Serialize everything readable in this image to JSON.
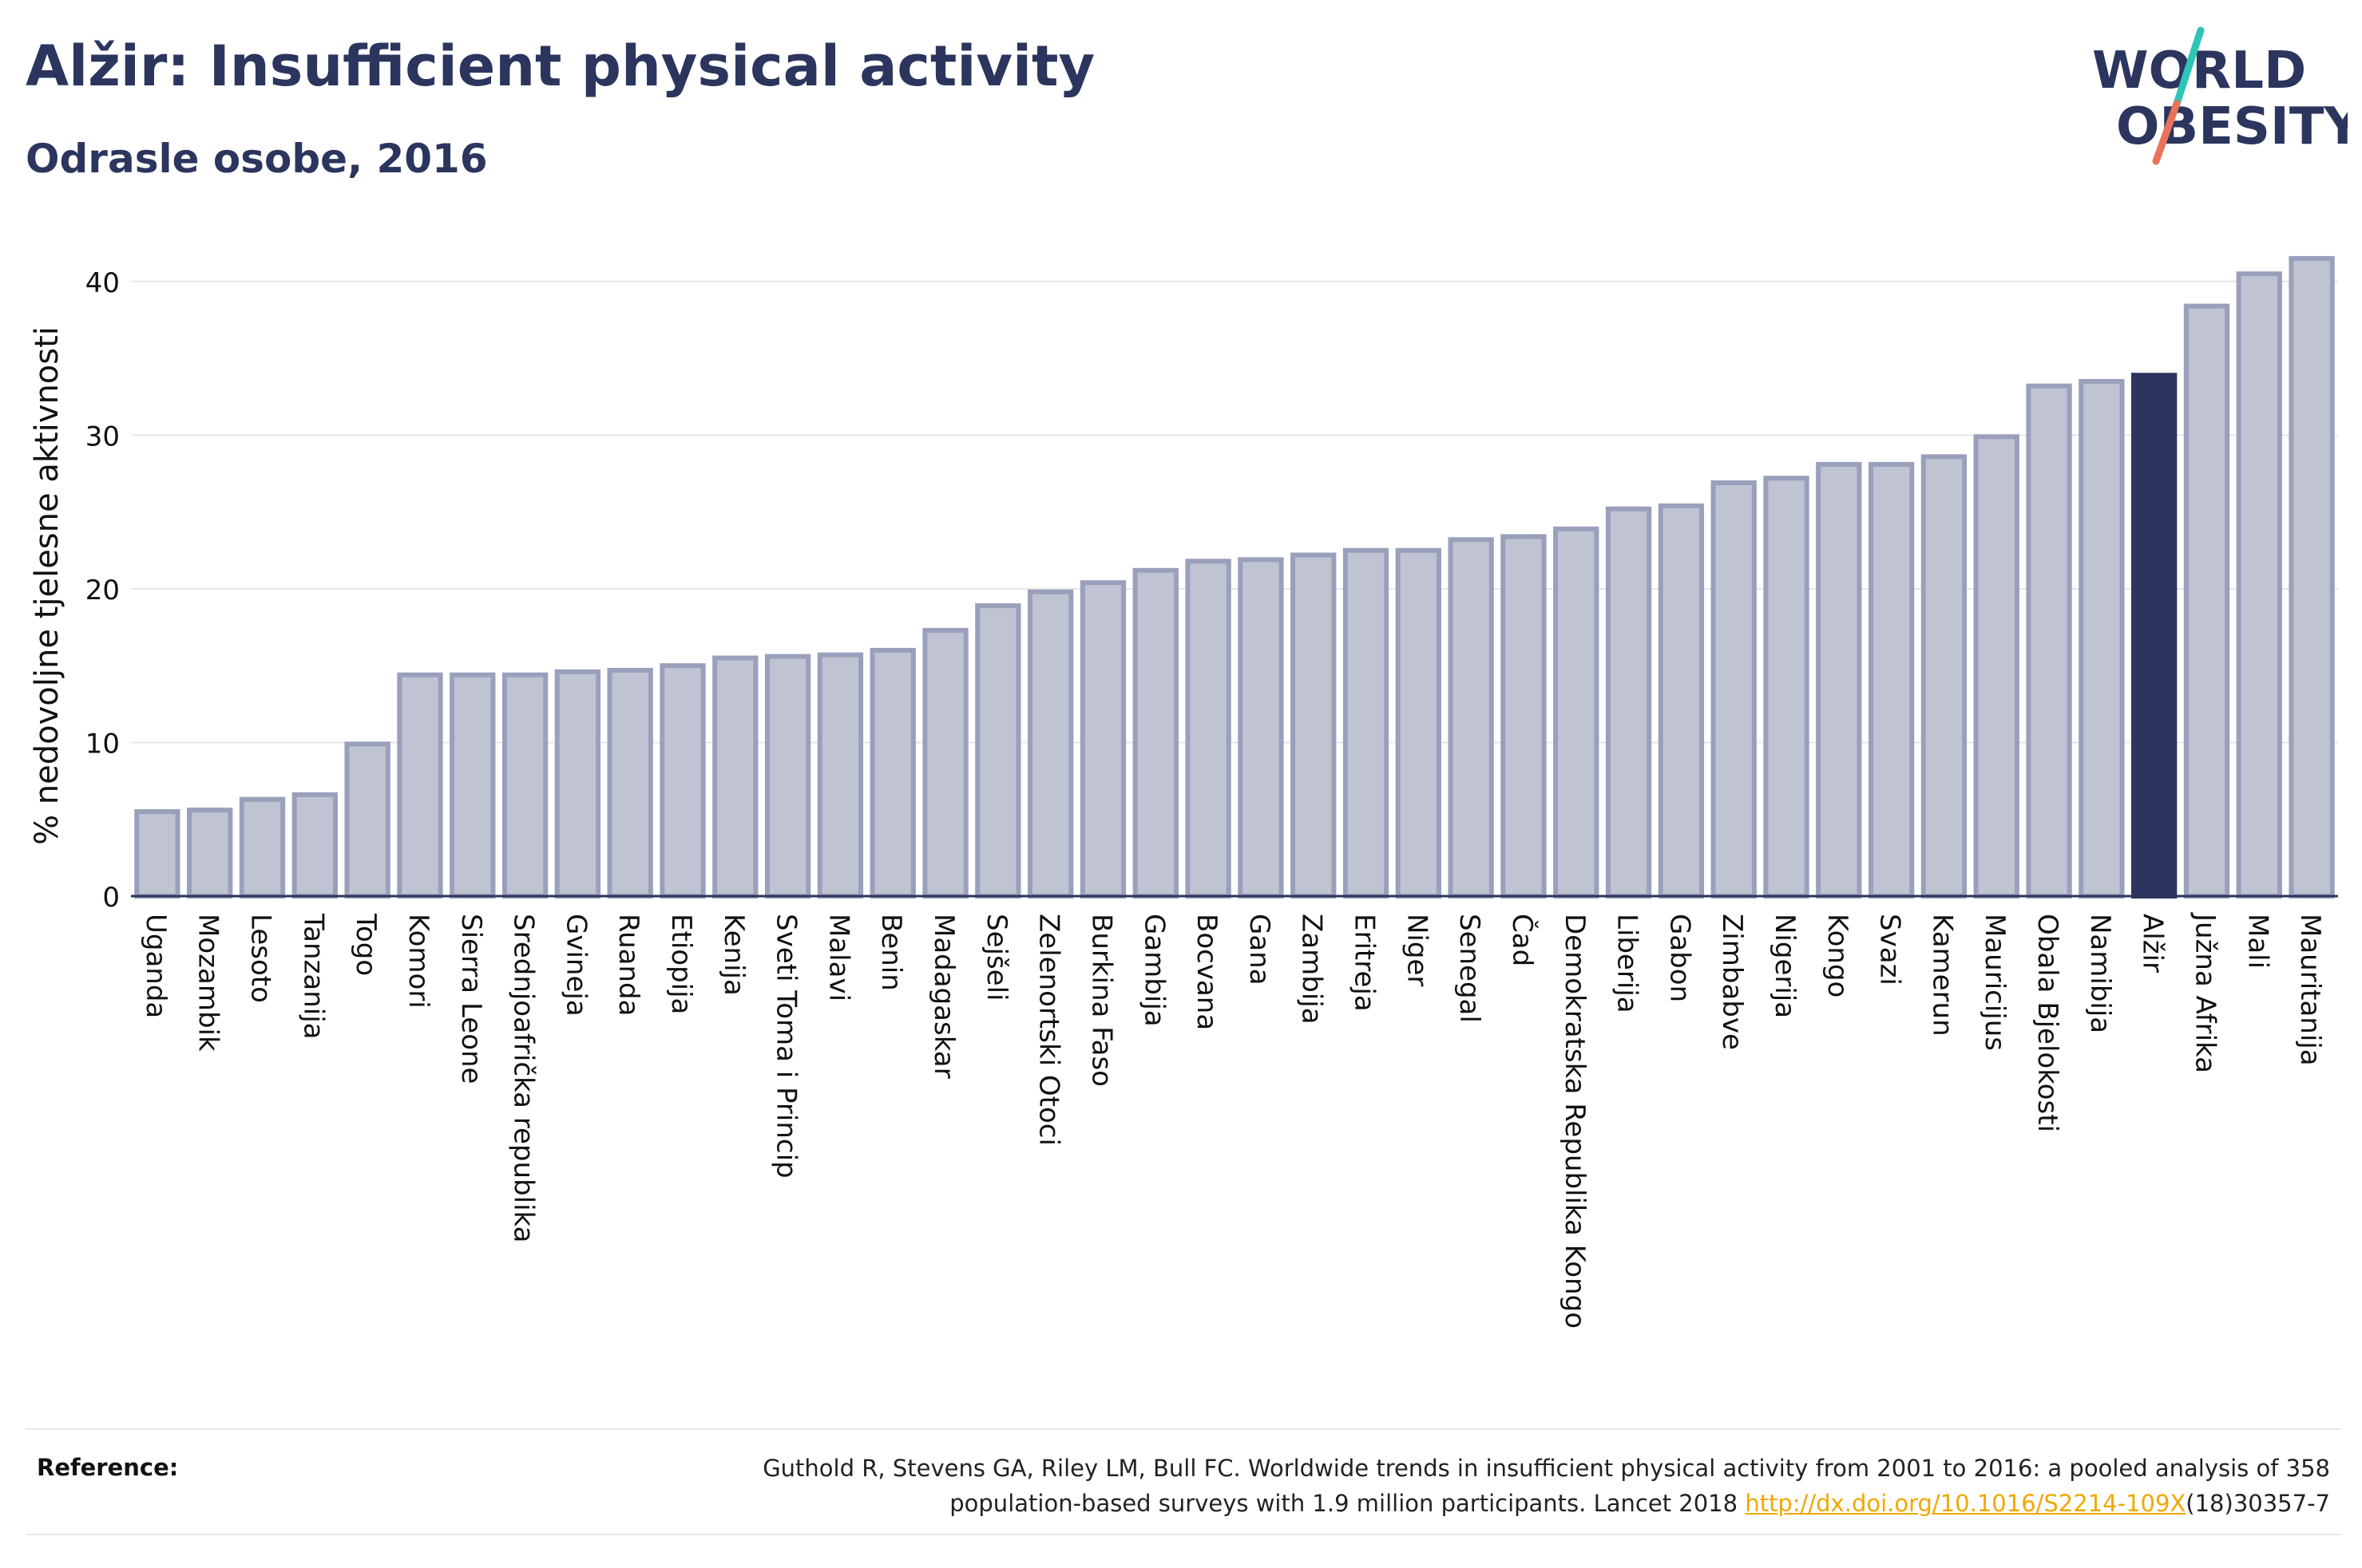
{
  "header": {
    "title": "Alžir: Insufficient physical activity",
    "subtitle": "Odrasle osobe, 2016"
  },
  "logo": {
    "line1": "WORLD",
    "line2": "OBESITY"
  },
  "colors": {
    "bar": "#bfc3d2",
    "bar_stroke": "#9aa0bb",
    "highlight": "#2b355e",
    "text": "#2b355e",
    "logo_teal": "#2ec4b6",
    "logo_coral": "#e8735a",
    "link": "#f0a800"
  },
  "chart_data": {
    "type": "bar",
    "ylabel": "% nedovoljne tjelesne aktivnosti",
    "ylim": [
      0,
      43
    ],
    "yticks": [
      0,
      10,
      20,
      30,
      40
    ],
    "grid": true,
    "highlight": "Alžir",
    "categories": [
      "Uganda",
      "Mozambik",
      "Lesoto",
      "Tanzanija",
      "Togo",
      "Komori",
      "Sierra Leone",
      "Srednjoafrička republika",
      "Gvineja",
      "Ruanda",
      "Etiopija",
      "Kenija",
      "Sveti Toma i Princip",
      "Malavi",
      "Benin",
      "Madagaskar",
      "Sejšeli",
      "Zelenortski Otoci",
      "Burkina Faso",
      "Gambija",
      "Bocvana",
      "Gana",
      "Zambija",
      "Eritreja",
      "Niger",
      "Senegal",
      "Čad",
      "Demokratska Republika Kongo",
      "Liberija",
      "Gabon",
      "Zimbabve",
      "Nigerija",
      "Kongo",
      "Svazi",
      "Kamerun",
      "Mauricijus",
      "Obala Bjelokosti",
      "Namibija",
      "Alžir",
      "Južna Afrika",
      "Mali",
      "Mauritanija"
    ],
    "values": [
      5.5,
      5.6,
      6.3,
      6.6,
      9.9,
      14.4,
      14.4,
      14.4,
      14.6,
      14.7,
      15.0,
      15.5,
      15.6,
      15.7,
      16.0,
      17.3,
      18.9,
      19.8,
      20.4,
      21.2,
      21.8,
      21.9,
      22.2,
      22.5,
      22.5,
      23.2,
      23.4,
      23.9,
      25.2,
      25.4,
      26.9,
      27.2,
      28.1,
      28.1,
      28.6,
      29.9,
      33.2,
      33.5,
      33.9,
      38.4,
      40.5,
      41.5
    ]
  },
  "footer": {
    "reference_label": "Reference:",
    "reference_line1": "Guthold R, Stevens GA, Riley LM, Bull FC. Worldwide trends in insufficient physical activity from 2001 to 2016: a pooled analysis of 358",
    "reference_line2_pre": "population-based surveys with 1.9 million participants. Lancet 2018 ",
    "reference_link": "http://dx.doi.org/10.1016/S2214-109X",
    "reference_line2_post": "(18)30357-7"
  }
}
